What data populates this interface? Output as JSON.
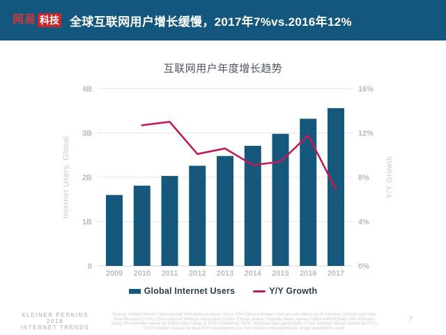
{
  "colors": {
    "header-bg": "#14577E",
    "logo-red": "#CE3A35",
    "logo-red-box": "#C8262B",
    "bar-color": "#16587C",
    "line-color": "#C11A58",
    "grid-color": "#E3E6E8",
    "axis-tick-color": "#B5BABF",
    "axis-title-color": "#C3C8CC"
  },
  "header": {
    "logo_brand": "网易",
    "logo_sub": "科技",
    "title": "全球互联网用户增长缓慢，2017年7%vs.2016年12%"
  },
  "chart": {
    "title": "互联网用户年度增长趋势",
    "legend": {
      "bar_label": "Global Internet Users",
      "line_label": "Y/Y Growth"
    }
  },
  "chart_data": {
    "type": "combo",
    "title": "互联网用户年度增长趋势",
    "categories": [
      "2009",
      "2010",
      "2011",
      "2012",
      "2013",
      "2014",
      "2015",
      "2016",
      "2017"
    ],
    "series": [
      {
        "name": "Global Internet Users",
        "type": "bar",
        "axis": "left",
        "unit": "billions",
        "color": "#16587C",
        "values": [
          1.6,
          1.81,
          2.03,
          2.26,
          2.48,
          2.71,
          2.98,
          3.32,
          3.56
        ]
      },
      {
        "name": "Y/Y Growth",
        "type": "line",
        "axis": "right",
        "unit": "percent",
        "color": "#C11A58",
        "values": [
          null,
          12.7,
          13.0,
          10.1,
          10.6,
          9.1,
          9.4,
          11.8,
          6.9
        ]
      }
    ],
    "left_axis": {
      "label": "Internet Users, Global",
      "range": [
        0,
        4
      ],
      "ticks": [
        "0",
        "1B",
        "2B",
        "3B",
        "4B"
      ]
    },
    "right_axis": {
      "label": "Y/Y Growth",
      "range": [
        0,
        16
      ],
      "ticks": [
        "0%",
        "4%",
        "8%",
        "12%",
        "16%"
      ]
    },
    "grid": true,
    "legend_position": "bottom"
  },
  "footer": {
    "brand_line1": "KLEINER PERKINS",
    "brand_line2": "2018",
    "brand_line3": "INTERNET TRENDS",
    "source": "Source: United Nations / International Telecommunications Union, USA Census Bureau. Internet user data is as of mid-year. Internet user data: Pew Research (USA), China Internet Network Information Center (China), Islamic Republic News Agency / InternetWorldStats / KP estimates (Iran), KP estimates based on IAMAI data (India), & APJII (Indonesia). Note: Historical data (particularly in Sub-Saharan Africa) revised by ITU in 2017 to better account for dual-SIM subscriptions (i.e. two Internet subscriptions per single smartphone user).",
    "page_number": "7"
  }
}
